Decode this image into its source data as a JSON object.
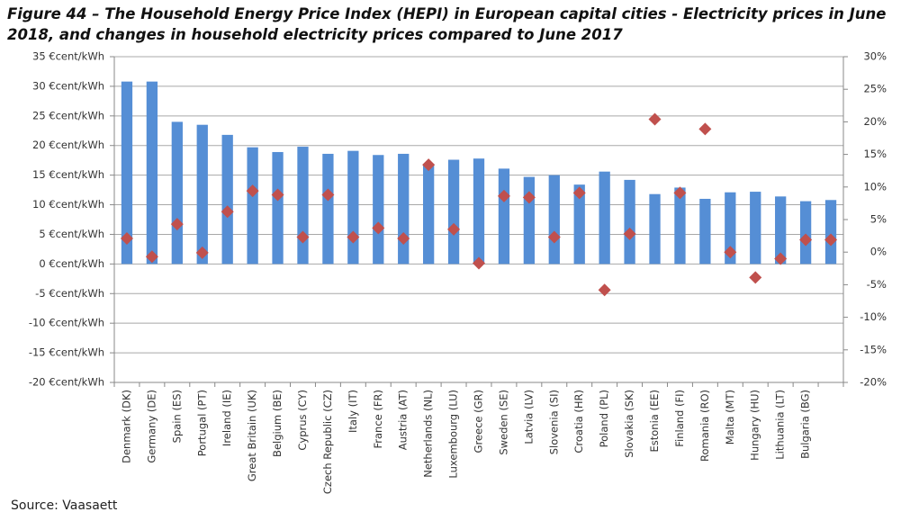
{
  "chart_data": {
    "type": "bar",
    "title": "Figure 44 – The Household Energy Price Index (HEPI) in European capital cities - Electricity prices in June 2018, and changes in household electricity prices compared to June 2017",
    "source": "Source: Vaasaett",
    "categories": [
      "Denmark (DK)",
      "Germany (DE)",
      "Spain (ES)",
      "Portugal (PT)",
      "Ireland (IE)",
      "Great Britain (UK)",
      "Belgium (BE)",
      "Cyprus (CY)",
      "Czech Republic (CZ)",
      "Italy (IT)",
      "France (FR)",
      "Austria (AT)",
      "Netherlands (NL)",
      "Luxembourg (LU)",
      "Greece (GR)",
      "Sweden (SE)",
      "Latvia (LV)",
      "Slovenia (SI)",
      "Croatia (HR)",
      "Poland (PL)",
      "Slovakia (SK)",
      "Estonia (EE)",
      "Finland (FI)",
      "Romania (RO)",
      "Malta (MT)",
      "Hungary (HU)",
      "Lithuania (LT)",
      "Bulgaria (BG)",
      null
    ],
    "series": [
      {
        "color": "#558ed5",
        "values": [
          30.8,
          30.8,
          24.0,
          23.5,
          21.8,
          19.7,
          18.9,
          19.8,
          18.6,
          19.1,
          18.4,
          18.6,
          16.9,
          17.6,
          17.8,
          16.1,
          14.7,
          15.0,
          13.4,
          15.6,
          14.2,
          11.8,
          12.9,
          11.0,
          12.1,
          12.2,
          11.4,
          10.6,
          10.8
        ]
      },
      {
        "color": "#c0504d",
        "axis": "y2",
        "values": [
          2.1,
          -0.7,
          4.3,
          -0.1,
          6.2,
          9.4,
          8.8,
          2.3,
          8.8,
          2.3,
          3.7,
          2.1,
          13.4,
          3.5,
          -1.7,
          8.6,
          8.4,
          2.3,
          9.1,
          -5.8,
          2.8,
          20.4,
          9.1,
          18.9,
          0,
          -3.9,
          -1.0,
          1.9,
          1.9
        ]
      }
    ],
    "ylim": [
      -20,
      35
    ],
    "yticks": [
      {
        "value": -20,
        "label": "-20 €cent/kWh"
      },
      {
        "value": -15,
        "label": "-15 €cent/kWh"
      },
      {
        "value": -10,
        "label": "-10 €cent/kWh"
      },
      {
        "value": -5,
        "label": "-5 €cent/kWh"
      },
      {
        "value": 0,
        "label": "0 €cent/kWh"
      },
      {
        "value": 5,
        "label": "5 €cent/kWh"
      },
      {
        "value": 10,
        "label": "10 €cent/kWh"
      },
      {
        "value": 15,
        "label": "15 €cent/kWh"
      },
      {
        "value": 20,
        "label": "20 €cent/kWh"
      },
      {
        "value": 25,
        "label": "25 €cent/kWh"
      },
      {
        "value": 30,
        "label": "30 €cent/kWh"
      },
      {
        "value": 35,
        "label": "35 €cent/kWh"
      }
    ],
    "y2lim": [
      -20,
      30
    ],
    "y2ticks": [
      {
        "value": -20,
        "label": "-20%"
      },
      {
        "value": -15,
        "label": "-15%"
      },
      {
        "value": -10,
        "label": "-10%"
      },
      {
        "value": -5,
        "label": "-5%"
      },
      {
        "value": 0,
        "label": "0%"
      },
      {
        "value": 5,
        "label": "5%"
      },
      {
        "value": 10,
        "label": "10%"
      },
      {
        "value": 15,
        "label": "15%"
      },
      {
        "value": 20,
        "label": "20%"
      },
      {
        "value": 25,
        "label": "25%"
      },
      {
        "value": 30,
        "label": "30%"
      }
    ],
    "grid": true
  }
}
